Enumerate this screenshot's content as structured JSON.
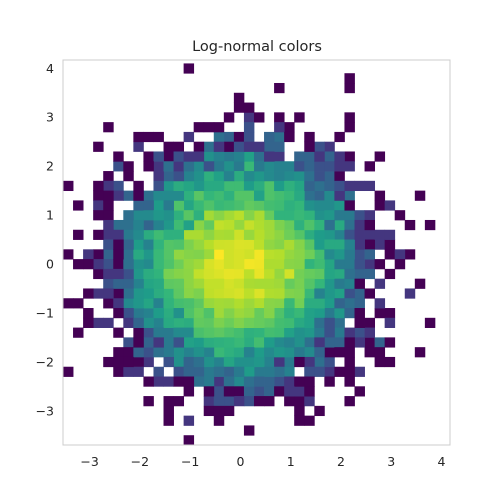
{
  "chart_data": {
    "type": "heatmap",
    "title": "Log-normal colors",
    "xlabel": "",
    "ylabel": "",
    "xlim": [
      -3.53,
      4.17
    ],
    "ylim": [
      -3.7,
      4.17
    ],
    "x_ticks": [
      -3,
      -2,
      -1,
      0,
      1,
      2,
      3,
      4
    ],
    "y_ticks": [
      -3,
      -2,
      -1,
      0,
      1,
      2,
      3,
      4
    ],
    "x_tick_labels": [
      "−3",
      "−2",
      "−1",
      "0",
      "1",
      "2",
      "3",
      "4"
    ],
    "y_tick_labels": [
      "−3",
      "−2",
      "−1",
      "0",
      "1",
      "2",
      "3",
      "4"
    ],
    "grid": false,
    "colormap": "viridis",
    "color_scale": "log",
    "bins": 40,
    "bin_width": 0.2,
    "estimated_density": "2D histogram of an approximately standard bivariate normal sample, counts peaking near (0, 0)",
    "peak_center": [
      0.0,
      0.0
    ],
    "spread_sigma": 1.0,
    "count_range": [
      1,
      90
    ],
    "colors": {
      "viridis_low": "#440154",
      "viridis_mid": "#21918c",
      "viridis_high": "#fde725",
      "frame": "#cccccc",
      "text": "#262626"
    }
  }
}
